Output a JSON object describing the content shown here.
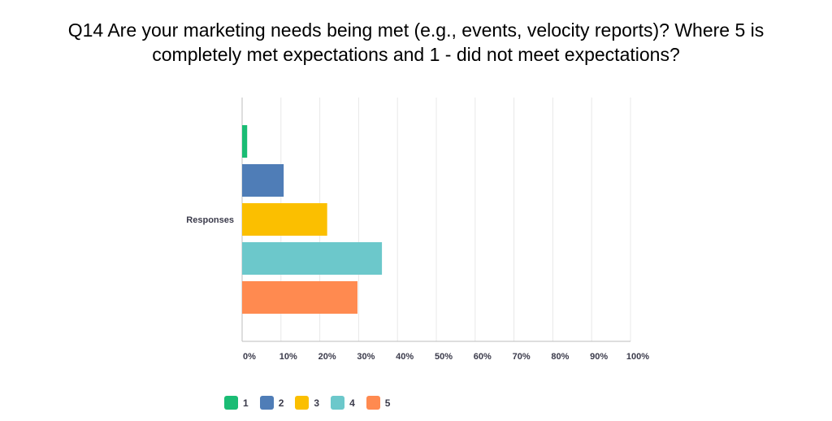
{
  "title": {
    "line1": "Q14 Are your marketing needs being met (e.g., events, velocity reports)? Where 5 is",
    "line2": "completely met expectations and 1 - did not meet expectations?"
  },
  "chart_data": {
    "type": "bar",
    "orientation": "horizontal",
    "categories": [
      "Responses"
    ],
    "series": [
      {
        "name": "1",
        "values": [
          1.3
        ],
        "color": "#1abc74"
      },
      {
        "name": "2",
        "values": [
          10.7
        ],
        "color": "#4f7db7"
      },
      {
        "name": "3",
        "values": [
          21.9
        ],
        "color": "#fbbf00"
      },
      {
        "name": "4",
        "values": [
          36.0
        ],
        "color": "#6cc8cb"
      },
      {
        "name": "5",
        "values": [
          29.7
        ],
        "color": "#ff8a50"
      }
    ],
    "xlim": [
      0,
      100
    ],
    "xticks": [
      "0%",
      "10%",
      "20%",
      "30%",
      "40%",
      "50%",
      "60%",
      "70%",
      "80%",
      "90%",
      "100%"
    ],
    "grid": true,
    "legend_position": "bottom"
  }
}
